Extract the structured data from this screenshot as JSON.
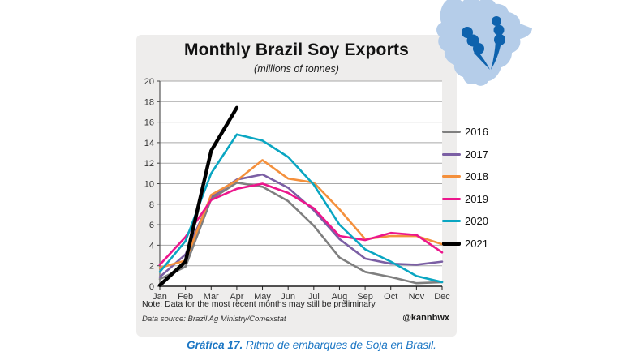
{
  "chart_data": {
    "type": "line",
    "title": "Monthly Brazil Soy Exports",
    "subtitle": "(millions of tonnes)",
    "categories": [
      "Jan",
      "Feb",
      "Mar",
      "Apr",
      "May",
      "Jun",
      "Jul",
      "Aug",
      "Sep",
      "Oct",
      "Nov",
      "Dec"
    ],
    "ylim": [
      0,
      20
    ],
    "ytick_step": 2,
    "grid": true,
    "legend_position": "right",
    "series": [
      {
        "name": "2016",
        "color": "#7f7f7f",
        "values": [
          0.7,
          1.9,
          8.5,
          10.1,
          9.7,
          8.3,
          5.9,
          2.8,
          1.4,
          0.9,
          0.3,
          0.4
        ]
      },
      {
        "name": "2017",
        "color": "#7b5fa4",
        "values": [
          0.9,
          3.1,
          8.7,
          10.4,
          10.9,
          9.6,
          7.4,
          4.6,
          2.7,
          2.2,
          2.1,
          2.4
        ]
      },
      {
        "name": "2018",
        "color": "#f4903c",
        "values": [
          1.8,
          2.5,
          8.9,
          10.3,
          12.3,
          10.5,
          10.1,
          7.5,
          4.6,
          4.9,
          4.9,
          4.1
        ]
      },
      {
        "name": "2019",
        "color": "#ec168c",
        "values": [
          2.1,
          4.8,
          8.4,
          9.5,
          10.0,
          9.1,
          7.6,
          4.9,
          4.5,
          5.2,
          5.0,
          3.3
        ]
      },
      {
        "name": "2020",
        "color": "#0aa6c2",
        "values": [
          1.4,
          4.4,
          11.0,
          14.8,
          14.2,
          12.6,
          9.9,
          6.0,
          3.6,
          2.4,
          1.0,
          0.4
        ]
      },
      {
        "name": "2021",
        "color": "#000000",
        "bold": true,
        "values": [
          0.1,
          2.4,
          13.2,
          17.4
        ]
      }
    ],
    "note": "Note: Data for the most recent months may still be preliminary",
    "source": "Data source: Brazil Ag Ministry/Comexstat",
    "credit": "@kannbwx"
  },
  "caption": {
    "label": "Gráfica 17.",
    "text": " Ritmo de embarques de Soja en Brasil."
  },
  "map": {
    "land_color": "#b5cde9",
    "bean_color": "#0e62ad"
  }
}
